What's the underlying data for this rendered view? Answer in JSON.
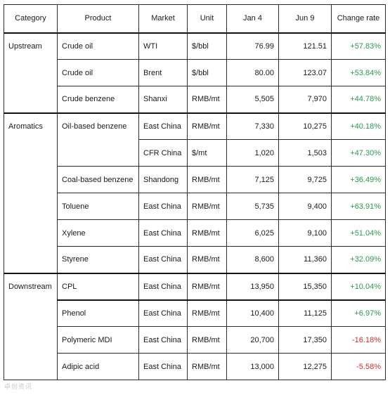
{
  "headers": [
    "Category",
    "Product",
    "Market",
    "Unit",
    "Jan 4",
    "Jun 9",
    "Change rate"
  ],
  "rows": [
    {
      "category": "Upstream",
      "product": "Crude oil",
      "market": "WTI",
      "unit": "$/bbl",
      "jan4": "76.99",
      "jun9": "121.51",
      "change": "+57.83%"
    },
    {
      "category": "",
      "product": "Crude oil",
      "market": "Brent",
      "unit": "$/bbl",
      "jan4": "80.00",
      "jun9": "123.07",
      "change": "+53.84%"
    },
    {
      "category": "",
      "product": "Crude benzene",
      "market": "Shanxi",
      "unit": "RMB/mt",
      "jan4": "5,505",
      "jun9": "7,970",
      "change": "+44.78%"
    },
    {
      "category": "Aromatics",
      "product": "Oil-based benzene",
      "market": "East China",
      "unit": "RMB/mt",
      "jan4": "7,330",
      "jun9": "10,275",
      "change": "+40.18%"
    },
    {
      "category": "",
      "product": "",
      "market": "CFR China",
      "unit": "$/mt",
      "jan4": "1,020",
      "jun9": "1,503",
      "change": "+47.30%"
    },
    {
      "category": "",
      "product": "Coal-based benzene",
      "market": "Shandong",
      "unit": "RMB/mt",
      "jan4": "7,125",
      "jun9": "9,725",
      "change": "+36.49%"
    },
    {
      "category": "",
      "product": "Toluene",
      "market": "East China",
      "unit": "RMB/mt",
      "jan4": "5,735",
      "jun9": "9,400",
      "change": "+63.91%"
    },
    {
      "category": "",
      "product": "Xylene",
      "market": "East China",
      "unit": "RMB/mt",
      "jan4": "6,025",
      "jun9": "9,100",
      "change": "+51.04%"
    },
    {
      "category": "",
      "product": "Styrene",
      "market": "East China",
      "unit": "RMB/mt",
      "jan4": "8,600",
      "jun9": "11,360",
      "change": "+32.09%"
    },
    {
      "category": "Downstream",
      "product": "CPL",
      "market": "East China",
      "unit": "RMB/mt",
      "jan4": "13,950",
      "jun9": "15,350",
      "change": "+10.04%"
    },
    {
      "category": "",
      "product": "Phenol",
      "market": "East China",
      "unit": "RMB/mt",
      "jan4": "10,400",
      "jun9": "11,125",
      "change": "+6.97%"
    },
    {
      "category": "",
      "product": "Polymeric MDI",
      "market": "East China",
      "unit": "RMB/mt",
      "jan4": "20,700",
      "jun9": "17,350",
      "change": "-16.18%"
    },
    {
      "category": "",
      "product": "Adipic acid",
      "market": "East China",
      "unit": "RMB/mt",
      "jan4": "13,000",
      "jun9": "12,275",
      "change": "-5.58%"
    }
  ],
  "colors": {
    "positive": "#2e9a4a",
    "negative": "#d03030"
  },
  "watermark": "卓创资讯"
}
